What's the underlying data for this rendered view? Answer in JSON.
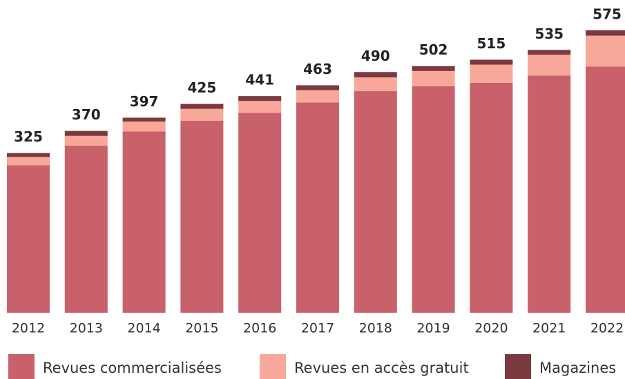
{
  "chart_data": {
    "type": "stacked_bar",
    "categories": [
      "2012",
      "2013",
      "2014",
      "2015",
      "2016",
      "2017",
      "2018",
      "2019",
      "2020",
      "2021",
      "2022"
    ],
    "series": [
      {
        "name": "Revues commercialisées",
        "color": "#c8616a",
        "values": [
          300,
          340,
          369,
          391,
          407,
          428,
          451,
          461,
          468,
          483,
          501
        ]
      },
      {
        "name": "Revues en accès gratuit",
        "color": "#f7a898",
        "values": [
          17,
          20,
          20,
          24,
          24,
          25,
          28,
          31,
          37,
          42,
          63
        ]
      },
      {
        "name": "Magazines",
        "color": "#7a3a40",
        "values": [
          8,
          10,
          8,
          10,
          10,
          10,
          11,
          10,
          10,
          10,
          11
        ]
      }
    ],
    "totals": [
      325,
      370,
      397,
      425,
      441,
      463,
      490,
      502,
      515,
      535,
      575
    ],
    "ylim": [
      0,
      600
    ]
  }
}
